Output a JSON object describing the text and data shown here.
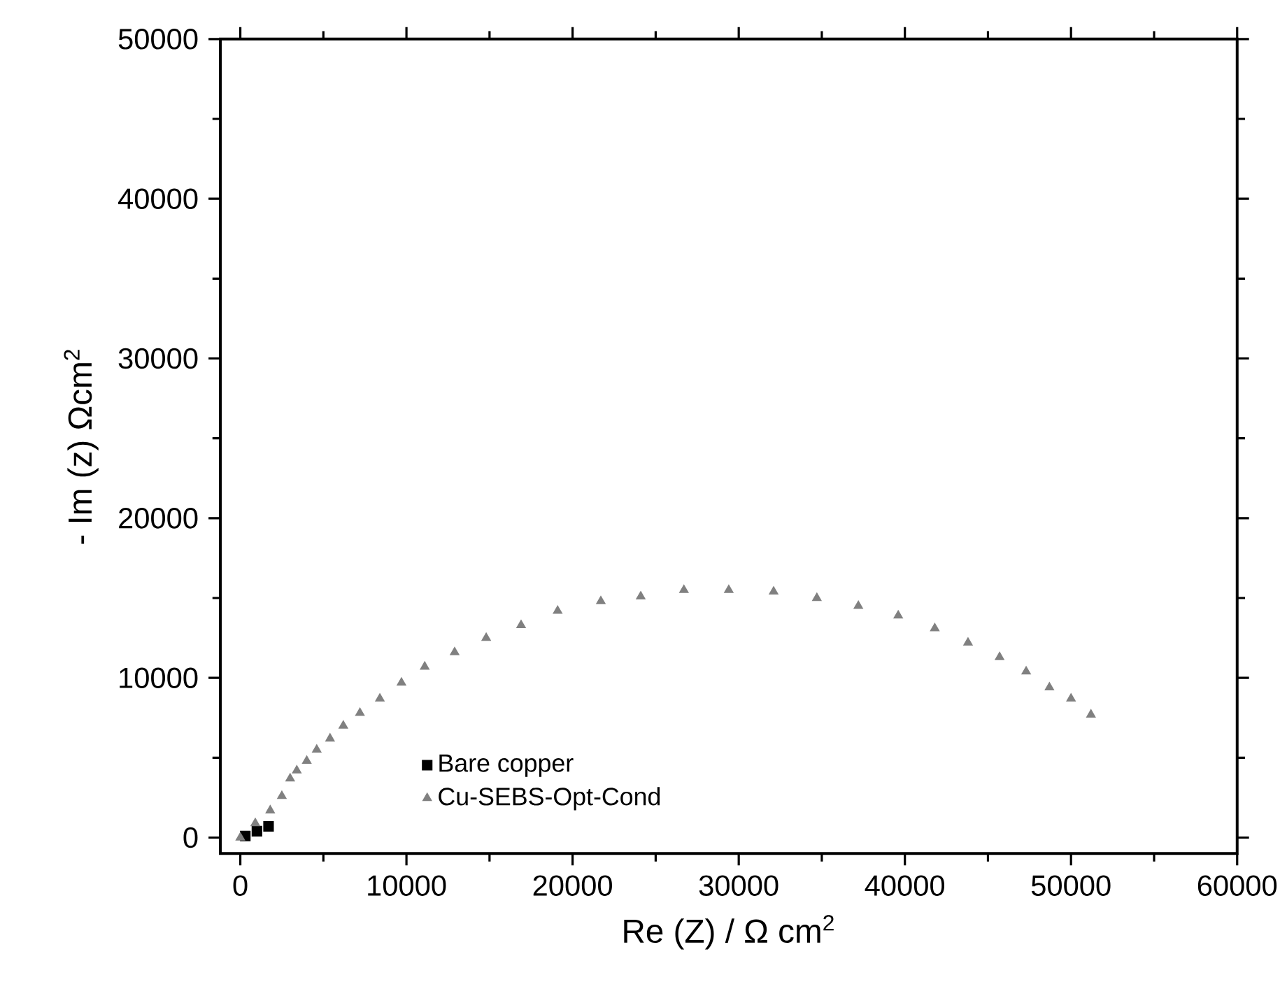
{
  "chart_data": {
    "type": "scatter",
    "xlabel": "Re (Z) / Ω cm$^{2}$",
    "ylabel": "- Im (z) Ωcm$^{2}$",
    "xlim": [
      -1200,
      60000
    ],
    "ylim": [
      -1000,
      50000
    ],
    "xticks": [
      0,
      10000,
      20000,
      30000,
      40000,
      50000,
      60000
    ],
    "yticks": [
      0,
      10000,
      20000,
      30000,
      40000,
      50000
    ],
    "grid": false,
    "legend": "bottom",
    "series": [
      {
        "name": "Bare copper",
        "color": "#000000",
        "marker": "square",
        "x": [
          300,
          1000,
          1700
        ],
        "values": [
          100,
          400,
          700
        ]
      },
      {
        "name": "Cu-SEBS-Opt-Cond",
        "color": "#808080",
        "marker": "triangle",
        "x": [
          0,
          900,
          1800,
          2500,
          3000,
          3400,
          4000,
          4600,
          5400,
          6200,
          7200,
          8400,
          9700,
          11100,
          12900,
          14800,
          16900,
          19100,
          21700,
          24100,
          26700,
          29400,
          32100,
          34700,
          37200,
          39600,
          41800,
          43800,
          45700,
          47300,
          48700,
          50000,
          51200
        ],
        "values": [
          0,
          900,
          1700,
          2600,
          3700,
          4200,
          4800,
          5500,
          6200,
          7000,
          7800,
          8700,
          9700,
          10700,
          11600,
          12500,
          13300,
          14200,
          14800,
          15100,
          15500,
          15500,
          15400,
          15000,
          14500,
          13900,
          13100,
          12200,
          11300,
          10400,
          9400,
          8700,
          7700
        ]
      }
    ]
  }
}
